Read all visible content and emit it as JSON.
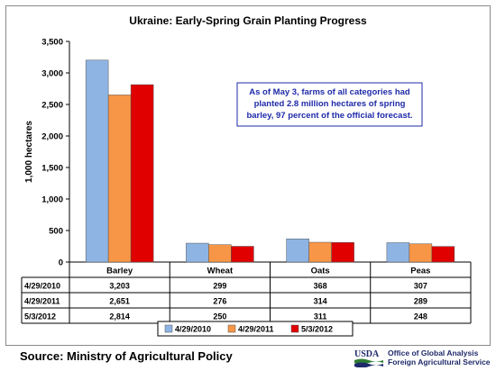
{
  "title": "Ukraine:  Early-Spring Grain Planting Progress",
  "footer": {
    "source": "Source:  Ministry of Agricultural Policy",
    "logo_text": "USDA",
    "office_line1": "Office of Global Analysis",
    "office_line2": "Foreign Agricultural Service"
  },
  "colors": {
    "series": [
      "#8eb4e3",
      "#f79646",
      "#e00000"
    ],
    "annotation_text": "#1f2aa8",
    "annotation_border": "#1f2aa8",
    "usda_green": "#2e7d32",
    "usda_blue": "#1f2a6a"
  },
  "chart_data": {
    "type": "bar",
    "title": "Ukraine:  Early-Spring Grain Planting Progress",
    "ylabel": "1,000 hectares",
    "xlabel": "",
    "ylim": [
      0,
      3500
    ],
    "yticks": [
      "0",
      "500",
      "1,000",
      "1,500",
      "2,000",
      "2,500",
      "3,000",
      "3,500"
    ],
    "grid": false,
    "legend": "bottom",
    "categories": [
      "Barley",
      "Wheat",
      "Oats",
      "Peas"
    ],
    "series": [
      {
        "name": "4/29/2010",
        "values": [
          3203,
          299,
          368,
          307
        ],
        "labels": [
          "3,203",
          "299",
          "368",
          "307"
        ]
      },
      {
        "name": "4/29/2011",
        "values": [
          2651,
          276,
          314,
          289
        ],
        "labels": [
          "2,651",
          "276",
          "314",
          "289"
        ]
      },
      {
        "name": "5/3/2012",
        "values": [
          2814,
          250,
          311,
          248
        ],
        "labels": [
          "2,814",
          "250",
          "311",
          "248"
        ]
      }
    ],
    "annotation": "As of May 3, farms of all categories had planted 2.8 million hectares of spring barley, 97 percent of the official forecast."
  }
}
